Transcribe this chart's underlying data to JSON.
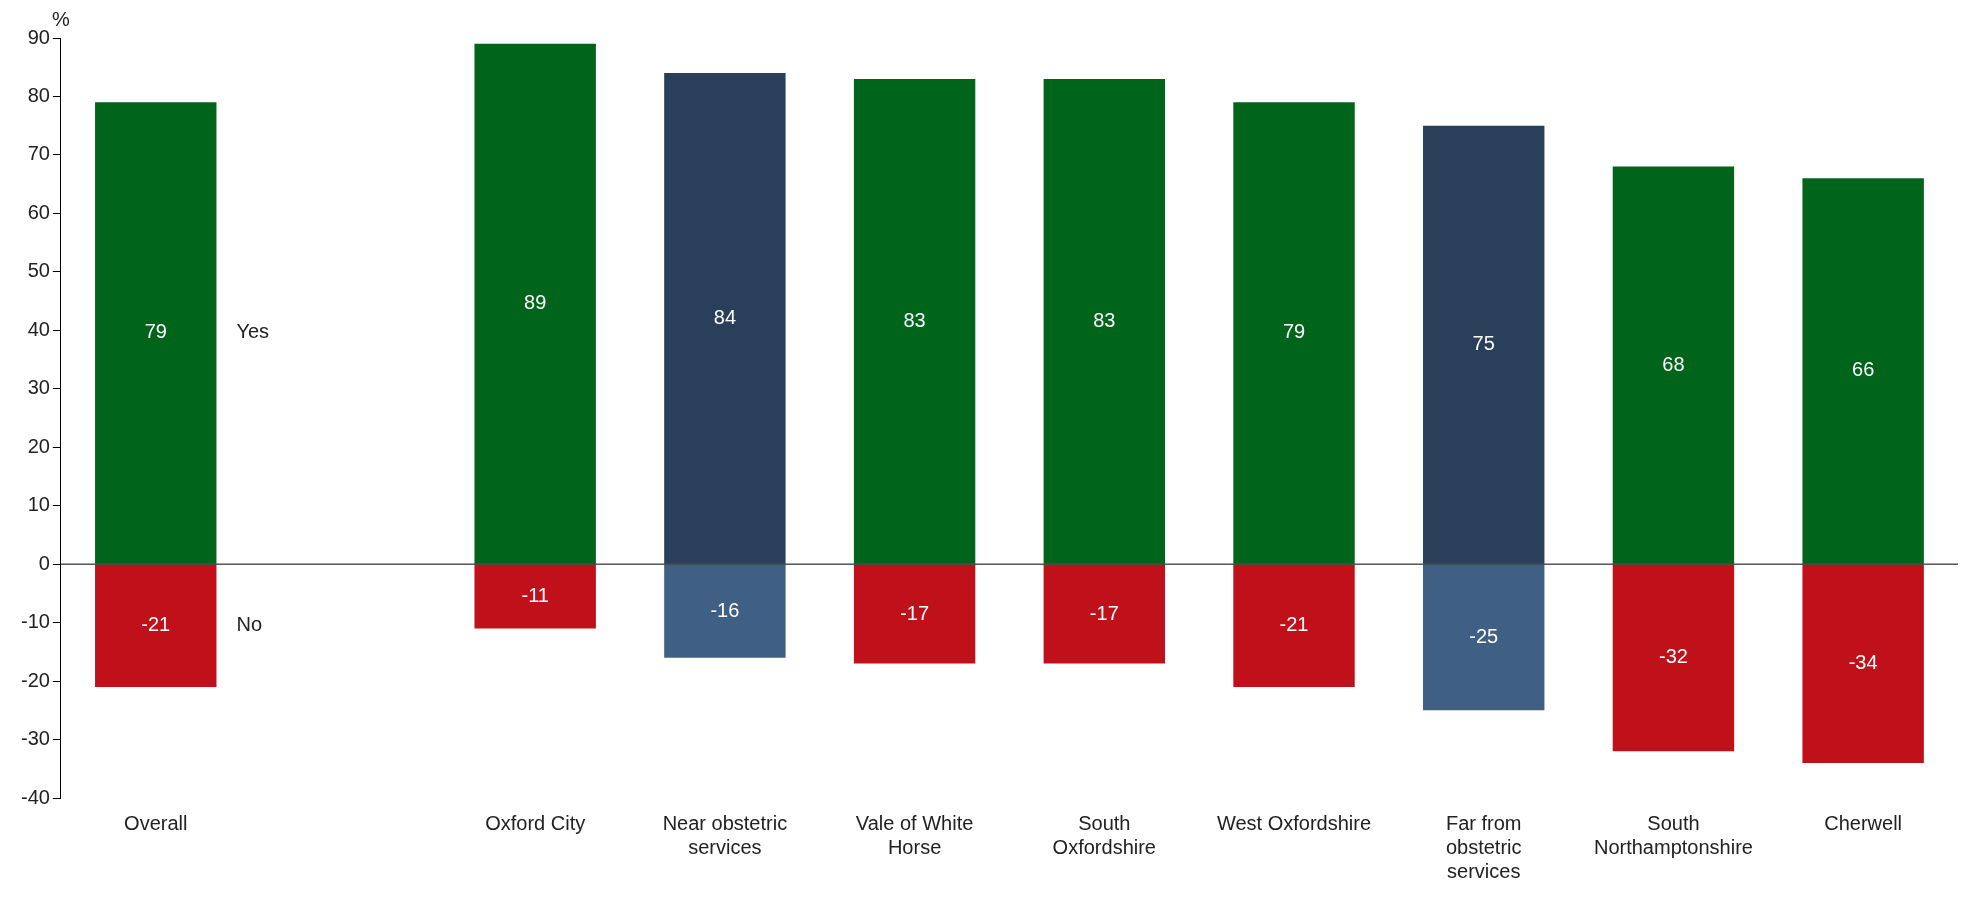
{
  "chart_data": {
    "type": "bar",
    "ylabel": "%",
    "categories": [
      "Overall",
      null,
      "Oxford City",
      "Near obstetric services",
      "Vale of White Horse",
      "South Oxfordshire",
      "West Oxfordshire",
      "Far from obstetric services",
      "South Northamptonshire",
      "Cherwell"
    ],
    "series": [
      {
        "name": "Yes",
        "colors": [
          "#00641a",
          null,
          "#00641a",
          "#2a3f5a",
          "#00641a",
          "#00641a",
          "#00641a",
          "#2a3f5a",
          "#00641a",
          "#00641a"
        ],
        "values": [
          79,
          null,
          89,
          84,
          83,
          83,
          79,
          75,
          68,
          66
        ]
      },
      {
        "name": "No",
        "colors": [
          "#c0101a",
          null,
          "#c0101a",
          "#3f5f85",
          "#c0101a",
          "#c0101a",
          "#c0101a",
          "#3f5f85",
          "#c0101a",
          "#c0101a"
        ],
        "values": [
          -21,
          null,
          -11,
          -16,
          -17,
          -17,
          -21,
          -25,
          -32,
          -34
        ]
      }
    ],
    "stacked": true,
    "ref_lines": [
      {
        "axis": "y",
        "value": 0,
        "color": "#000000"
      }
    ],
    "ylim": [
      -40,
      90
    ],
    "yticks": [
      -40,
      -30,
      -20,
      -10,
      0,
      10,
      20,
      30,
      40,
      50,
      60,
      70,
      80,
      90
    ],
    "grid": false,
    "legend": false,
    "data_labels": true
  }
}
